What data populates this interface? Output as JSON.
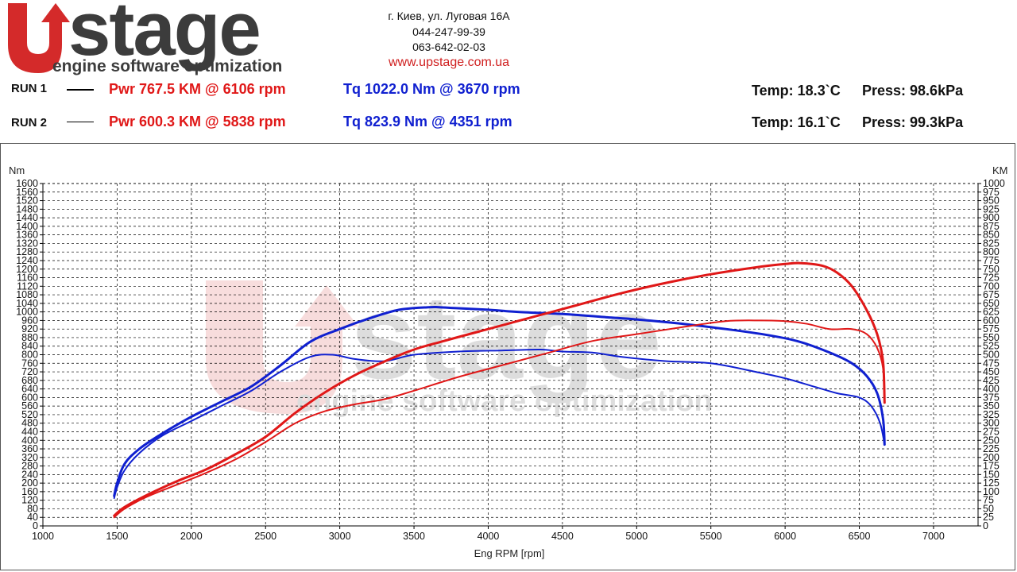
{
  "header": {
    "logo_text": "stage",
    "logo_tagline": "engine software optimization",
    "address_line1": "г. Киев, ул. Луговая 16А",
    "phone1": "044-247-99-39",
    "phone2": "063-642-02-03",
    "website": "www.upstage.com.ua"
  },
  "runs": [
    {
      "label": "RUN 1",
      "pwr": "Pwr  767.5 KM @ 6106 rpm",
      "tq": "Tq 1022.0 Nm @ 3670 rpm",
      "temp": "Temp: 18.3`C",
      "press": "Press: 98.6kPa"
    },
    {
      "label": "RUN 2",
      "pwr": "Pwr  600.3 KM @ 5838 rpm",
      "tq": "Tq 823.9 Nm @ 4351 rpm",
      "temp": "Temp: 16.1`C",
      "press": "Press: 99.3kPa"
    }
  ],
  "colors": {
    "power": "#e01818",
    "torque": "#1020d0",
    "logo_red": "#d42a2a",
    "logo_grey": "#3c3c3c"
  },
  "chart_data": {
    "type": "line",
    "xlabel": "Eng RPM [rpm]",
    "ylabel_left": "Nm",
    "ylabel_right": "KM",
    "xlim": [
      1000,
      7300
    ],
    "ylim_left": [
      0,
      1600
    ],
    "ylim_right": [
      0,
      1000
    ],
    "xticks": [
      1000,
      1500,
      2000,
      2500,
      3000,
      3500,
      4000,
      4500,
      5000,
      5500,
      6000,
      6500,
      7000
    ],
    "left_tick_step": 40,
    "right_tick_step": 25,
    "grid": true,
    "series": [
      {
        "axis": "left",
        "color": "#1020d0",
        "width": 3,
        "x": [
          1480,
          1500,
          1550,
          1650,
          1800,
          2000,
          2200,
          2400,
          2600,
          2800,
          3000,
          3200,
          3400,
          3600,
          3670,
          3800,
          4000,
          4200,
          4500,
          4800,
          5000,
          5300,
          5600,
          5900,
          6100,
          6300,
          6450,
          6550,
          6620,
          6660,
          6670
        ],
        "y": [
          140,
          200,
          290,
          360,
          430,
          510,
          580,
          650,
          750,
          860,
          920,
          970,
          1010,
          1022,
          1022,
          1017,
          1010,
          1000,
          990,
          975,
          965,
          945,
          920,
          890,
          860,
          810,
          760,
          700,
          620,
          500,
          380
        ]
      },
      {
        "axis": "left",
        "color": "#1020d0",
        "width": 2,
        "x": [
          1480,
          1500,
          1550,
          1650,
          1800,
          2000,
          2200,
          2400,
          2600,
          2800,
          2950,
          3100,
          3300,
          3500,
          3800,
          4100,
          4351,
          4500,
          4700,
          4900,
          5200,
          5500,
          5800,
          6000,
          6200,
          6350,
          6500,
          6580,
          6640,
          6670
        ],
        "y": [
          130,
          180,
          260,
          340,
          420,
          490,
          560,
          630,
          720,
          790,
          800,
          780,
          770,
          800,
          815,
          820,
          824,
          815,
          810,
          790,
          770,
          760,
          720,
          690,
          650,
          620,
          600,
          560,
          480,
          380
        ]
      },
      {
        "axis": "right",
        "color": "#e01818",
        "width": 3,
        "x": [
          1480,
          1550,
          1700,
          1900,
          2100,
          2300,
          2500,
          2700,
          2900,
          3100,
          3300,
          3500,
          3700,
          4000,
          4300,
          4600,
          4900,
          5200,
          5500,
          5800,
          6000,
          6106,
          6250,
          6350,
          6450,
          6550,
          6620,
          6660,
          6670
        ],
        "y": [
          30,
          55,
          90,
          130,
          165,
          210,
          260,
          330,
          390,
          440,
          480,
          515,
          540,
          575,
          610,
          645,
          680,
          710,
          735,
          755,
          765,
          767.5,
          760,
          740,
          700,
          630,
          560,
          480,
          360
        ]
      },
      {
        "axis": "right",
        "color": "#e01818",
        "width": 2,
        "x": [
          1480,
          1550,
          1700,
          1900,
          2100,
          2300,
          2500,
          2700,
          2900,
          3100,
          3300,
          3500,
          3800,
          4100,
          4400,
          4700,
          5000,
          5300,
          5600,
          5838,
          6000,
          6150,
          6300,
          6450,
          6550,
          6620,
          6660,
          6670
        ],
        "y": [
          25,
          50,
          85,
          120,
          155,
          195,
          245,
          300,
          335,
          355,
          370,
          395,
          435,
          470,
          505,
          540,
          560,
          580,
          598,
          600,
          598,
          590,
          575,
          575,
          560,
          520,
          460,
          360
        ]
      }
    ]
  }
}
